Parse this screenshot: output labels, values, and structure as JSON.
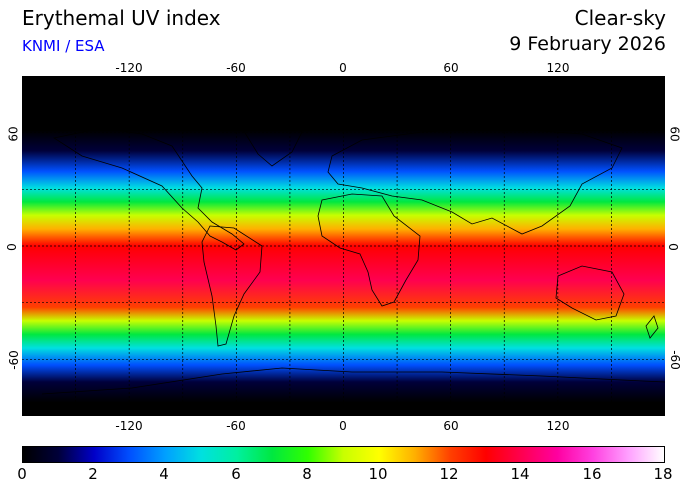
{
  "header": {
    "title": "Erythemal UV index",
    "credit": "KNMI / ESA",
    "sky_condition": "Clear-sky",
    "date": "9 February 2026"
  },
  "colors": {
    "credit": "#0000ff",
    "coast": "#000000",
    "grid": "#000000"
  },
  "map": {
    "projection": "plate-carree",
    "lon_range": [
      -180,
      180
    ],
    "lat_range": [
      -90,
      90
    ],
    "grid_spacing_deg": 30,
    "lon_ticks": [
      "-120",
      "-60",
      "0",
      "60",
      "120"
    ],
    "lat_ticks": [
      "60",
      "0",
      "-60"
    ]
  },
  "colorbar": {
    "ticks": [
      "0",
      "2",
      "4",
      "6",
      "8",
      "10",
      "12",
      "14",
      "16",
      "18"
    ],
    "stops": [
      {
        "v": 0,
        "c": "#000000"
      },
      {
        "v": 1,
        "c": "#00003a"
      },
      {
        "v": 2,
        "c": "#0000c8"
      },
      {
        "v": 3,
        "c": "#0050ff"
      },
      {
        "v": 4,
        "c": "#00a0ff"
      },
      {
        "v": 5,
        "c": "#00e0e0"
      },
      {
        "v": 6,
        "c": "#00f0a0"
      },
      {
        "v": 7,
        "c": "#00e840"
      },
      {
        "v": 8,
        "c": "#30ff00"
      },
      {
        "v": 9,
        "c": "#c8ff00"
      },
      {
        "v": 10,
        "c": "#ffff00"
      },
      {
        "v": 11,
        "c": "#ffb000"
      },
      {
        "v": 12,
        "c": "#ff4000"
      },
      {
        "v": 13,
        "c": "#ff0000"
      },
      {
        "v": 14,
        "c": "#ff0050"
      },
      {
        "v": 15,
        "c": "#ff00a0"
      },
      {
        "v": 16,
        "c": "#ff40e0"
      },
      {
        "v": 17,
        "c": "#ffa0ff"
      },
      {
        "v": 18,
        "c": "#ffffff"
      }
    ]
  }
}
